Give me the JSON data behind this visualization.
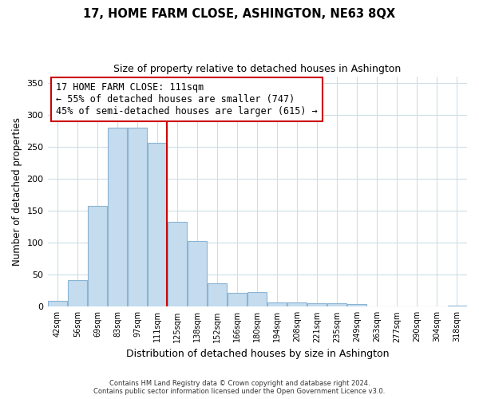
{
  "title": "17, HOME FARM CLOSE, ASHINGTON, NE63 8QX",
  "subtitle": "Size of property relative to detached houses in Ashington",
  "xlabel": "Distribution of detached houses by size in Ashington",
  "ylabel": "Number of detached properties",
  "bar_labels": [
    "42sqm",
    "56sqm",
    "69sqm",
    "83sqm",
    "97sqm",
    "111sqm",
    "125sqm",
    "138sqm",
    "152sqm",
    "166sqm",
    "180sqm",
    "194sqm",
    "208sqm",
    "221sqm",
    "235sqm",
    "249sqm",
    "263sqm",
    "277sqm",
    "290sqm",
    "304sqm",
    "318sqm"
  ],
  "bar_values": [
    9,
    42,
    158,
    280,
    280,
    256,
    133,
    103,
    36,
    22,
    23,
    7,
    6,
    5,
    5,
    4,
    0,
    0,
    0,
    0,
    2
  ],
  "bar_color": "#c5dcee",
  "bar_edge_color": "#8ab4d4",
  "highlight_bar_index": 5,
  "vline_color": "#cc0000",
  "annotation_title": "17 HOME FARM CLOSE: 111sqm",
  "annotation_line1": "← 55% of detached houses are smaller (747)",
  "annotation_line2": "45% of semi-detached houses are larger (615) →",
  "annotation_box_color": "#ffffff",
  "annotation_box_edge": "#cc0000",
  "ylim": [
    0,
    360
  ],
  "yticks": [
    0,
    50,
    100,
    150,
    200,
    250,
    300,
    350
  ],
  "footer1": "Contains HM Land Registry data © Crown copyright and database right 2024.",
  "footer2": "Contains public sector information licensed under the Open Government Licence v3.0.",
  "background_color": "#ffffff",
  "grid_color": "#ccdee8"
}
